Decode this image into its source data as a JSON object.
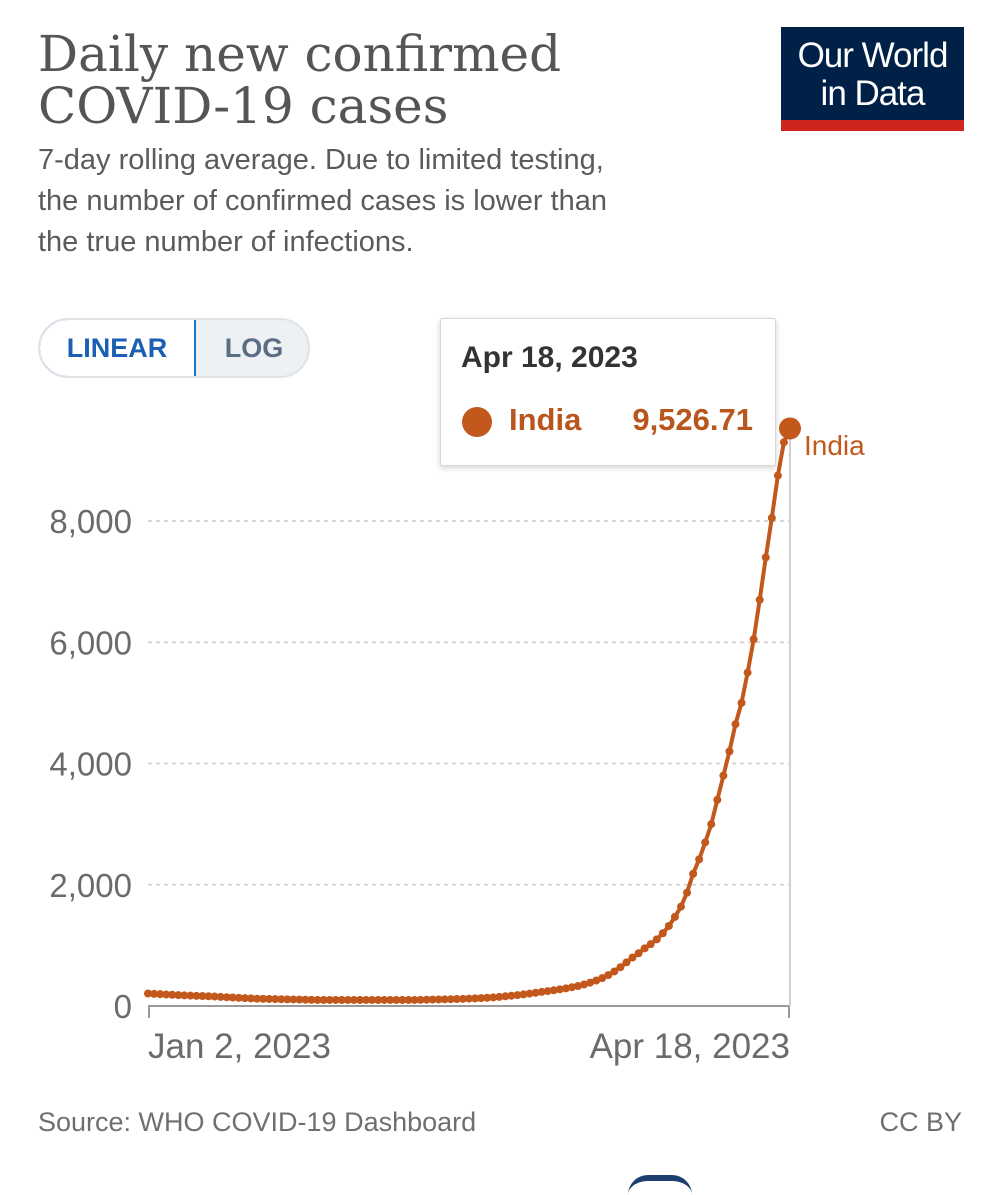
{
  "header": {
    "title_line1": "Daily new confirmed",
    "title_line2": "COVID-19 cases",
    "subtitle_line1": "7-day rolling average. Due to limited testing,",
    "subtitle_line2": "the number of confirmed cases is lower than",
    "subtitle_line3": "the true number of infections."
  },
  "logo": {
    "line1": "Our World",
    "line2": "in Data",
    "background_color": "#002147",
    "accent_color": "#ce261e"
  },
  "scale_toggle": {
    "linear_label": "LINEAR",
    "log_label": "LOG",
    "selected": "LINEAR"
  },
  "tooltip": {
    "date": "Apr 18, 2023",
    "series": "India",
    "value": "9,526.71"
  },
  "footer": {
    "source": "Source: WHO COVID-19 Dashboard",
    "license": "CC BY"
  },
  "chart_data": {
    "type": "line",
    "title": "Daily new confirmed COVID-19 cases",
    "subtitle": "7-day rolling average. Due to limited testing, the number of confirmed cases is lower than the true number of infections.",
    "x_axis": {
      "start_label": "Jan 2, 2023",
      "end_label": "Apr 18, 2023",
      "start_day": 0,
      "end_day": 106
    },
    "y_axis": {
      "ticks": [
        0,
        2000,
        4000,
        6000,
        8000
      ],
      "tick_labels": [
        "0",
        "2,000",
        "4,000",
        "6,000",
        "8,000"
      ],
      "ylim": [
        0,
        10000
      ],
      "grid": true
    },
    "series": [
      {
        "name": "India",
        "color": "#c2581c",
        "label": "India",
        "x": [
          0,
          1,
          2,
          3,
          4,
          5,
          6,
          7,
          8,
          9,
          10,
          11,
          12,
          13,
          14,
          15,
          16,
          17,
          18,
          19,
          20,
          21,
          22,
          23,
          24,
          25,
          26,
          27,
          28,
          29,
          30,
          31,
          32,
          33,
          34,
          35,
          36,
          37,
          38,
          39,
          40,
          41,
          42,
          43,
          44,
          45,
          46,
          47,
          48,
          49,
          50,
          51,
          52,
          53,
          54,
          55,
          56,
          57,
          58,
          59,
          60,
          61,
          62,
          63,
          64,
          65,
          66,
          67,
          68,
          69,
          70,
          71,
          72,
          73,
          74,
          75,
          76,
          77,
          78,
          79,
          80,
          81,
          82,
          83,
          84,
          85,
          86,
          87,
          88,
          89,
          90,
          91,
          92,
          93,
          94,
          95,
          96,
          97,
          98,
          99,
          100,
          101,
          102,
          103,
          104,
          105,
          106
        ],
        "y": [
          206,
          200,
          195,
          190,
          185,
          180,
          176,
          172,
          168,
          164,
          160,
          156,
          150,
          145,
          140,
          135,
          130,
          125,
          120,
          118,
          116,
          114,
          112,
          110,
          108,
          106,
          104,
          102,
          100,
          100,
          100,
          100,
          100,
          100,
          100,
          100,
          100,
          100,
          100,
          100,
          100,
          100,
          100,
          100,
          100,
          102,
          104,
          106,
          108,
          110,
          112,
          115,
          118,
          122,
          126,
          130,
          136,
          142,
          150,
          160,
          170,
          180,
          192,
          205,
          218,
          232,
          246,
          260,
          275,
          290,
          310,
          330,
          355,
          385,
          420,
          460,
          510,
          570,
          640,
          720,
          800,
          870,
          950,
          1020,
          1100,
          1200,
          1320,
          1470,
          1640,
          1870,
          2180,
          2420,
          2700,
          3000,
          3400,
          3800,
          4200,
          4650,
          5000,
          5500,
          6050,
          6700,
          7400,
          8050,
          8750,
          9300,
          9526.71
        ]
      }
    ],
    "highlighted_point": {
      "x": 106,
      "y": 9526.71,
      "label": "Apr 18, 2023"
    }
  }
}
